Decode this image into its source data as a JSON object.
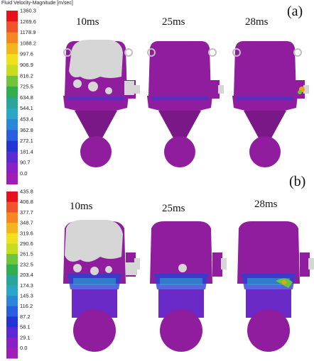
{
  "colorbar_title": "Fluid Velocity-Magnitude [m/sec]",
  "colors": {
    "purple": "#8f1d9e",
    "purple_dark": "#7a1888",
    "grey": "#d6d6d6",
    "grey_edge": "#bfbfbf",
    "blue": "#2a40d8",
    "cyan": "#2aa7c8"
  },
  "colorbar_colors": [
    "#e8101a",
    "#f0522a",
    "#f6861f",
    "#f7b51c",
    "#f3e01c",
    "#c7dd1e",
    "#6fc43a",
    "#2fae4c",
    "#2aa59a",
    "#2aa7c8",
    "#2a86d8",
    "#2a5ee0",
    "#2233d8",
    "#5a28d4",
    "#8a1fc8",
    "#a01cb8"
  ],
  "panels": [
    {
      "label": "(a)",
      "ticks": [
        "1360.3",
        "1269.6",
        "1178.9",
        "1088.2",
        "997.6",
        "906.9",
        "816.2",
        "725.5",
        "634.8",
        "544.1",
        "453.4",
        "362.8",
        "272.1",
        "181.4",
        "90.7",
        "0.0"
      ],
      "times": [
        "10ms",
        "25ms",
        "28ms"
      ]
    },
    {
      "label": "(b)",
      "ticks": [
        "435.8",
        "406.8",
        "377.7",
        "348.7",
        "319.6",
        "290.6",
        "261.5",
        "232.5",
        "203.4",
        "174.3",
        "145.3",
        "116.2",
        "87.2",
        "58.1",
        "29.1",
        "0.0"
      ],
      "times": [
        "10ms",
        "25ms",
        "28ms"
      ]
    }
  ]
}
